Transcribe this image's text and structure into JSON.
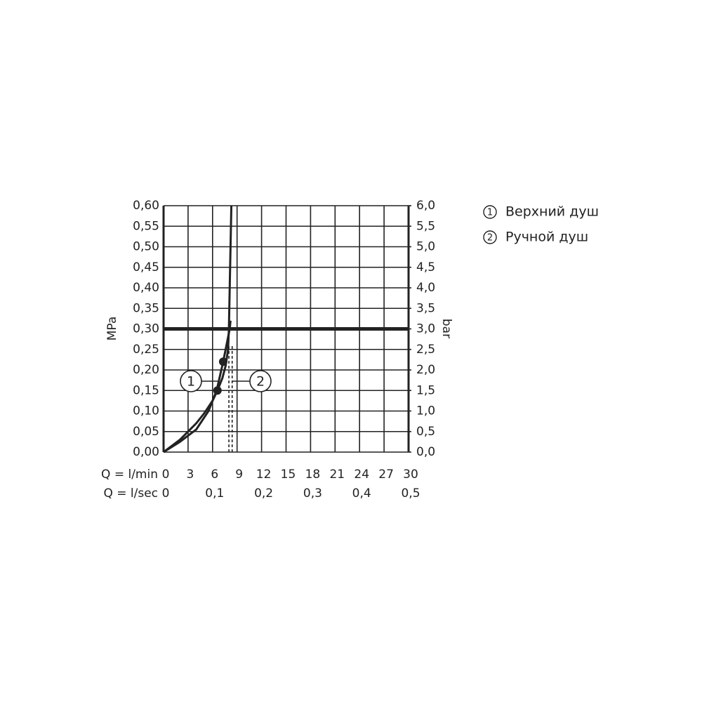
{
  "chart_data": {
    "type": "line",
    "y_label": "MPa",
    "y2_label": "bar",
    "x_label": "Q = l/min",
    "x2_label": "Q = l/sec",
    "xlim": [
      0,
      30
    ],
    "xticks": [
      0,
      3,
      6,
      9,
      12,
      15,
      18,
      21,
      24,
      27,
      30
    ],
    "x2lim": [
      0,
      0.5
    ],
    "x2ticks": [
      {
        "value": 0,
        "label": "0"
      },
      {
        "value": 0.1,
        "label": "0,1"
      },
      {
        "value": 0.2,
        "label": "0,2"
      },
      {
        "value": 0.3,
        "label": "0,3"
      },
      {
        "value": 0.4,
        "label": "0,4"
      },
      {
        "value": 0.5,
        "label": "0,5"
      }
    ],
    "ylim": [
      0,
      0.6
    ],
    "yticks": [
      {
        "value": 0,
        "label": "0,00"
      },
      {
        "value": 0.05,
        "label": "0,05"
      },
      {
        "value": 0.1,
        "label": "0,10"
      },
      {
        "value": 0.15,
        "label": "0,15"
      },
      {
        "value": 0.2,
        "label": "0,20"
      },
      {
        "value": 0.25,
        "label": "0,25"
      },
      {
        "value": 0.3,
        "label": "0,30"
      },
      {
        "value": 0.35,
        "label": "0,35"
      },
      {
        "value": 0.4,
        "label": "0,40"
      },
      {
        "value": 0.45,
        "label": "0,45"
      },
      {
        "value": 0.5,
        "label": "0,50"
      },
      {
        "value": 0.55,
        "label": "0,55"
      },
      {
        "value": 0.6,
        "label": "0,60"
      }
    ],
    "y2lim": [
      0,
      6
    ],
    "y2ticks": [
      {
        "value": 0,
        "label": "0,0"
      },
      {
        "value": 0.5,
        "label": "0,5"
      },
      {
        "value": 1,
        "label": "1,0"
      },
      {
        "value": 1.5,
        "label": "1,5"
      },
      {
        "value": 2,
        "label": "2,0"
      },
      {
        "value": 2.5,
        "label": "2,5"
      },
      {
        "value": 3,
        "label": "3,0"
      },
      {
        "value": 3.5,
        "label": "3,5"
      },
      {
        "value": 4,
        "label": "4,0"
      },
      {
        "value": 4.5,
        "label": "4,5"
      },
      {
        "value": 5,
        "label": "5,0"
      },
      {
        "value": 5.5,
        "label": "5,5"
      },
      {
        "value": 6,
        "label": "6,0"
      }
    ],
    "grid": true,
    "threshold": 0.3,
    "color": "#222222",
    "series": [
      {
        "name": "Верхний душ",
        "label": "1",
        "color": "#222222",
        "x": [
          0,
          2,
          4,
          5,
          6,
          6.6,
          7.2,
          7.6,
          7.9,
          8.0,
          8.05,
          8.1,
          8.2,
          8.3
        ],
        "values": [
          0,
          0.03,
          0.07,
          0.095,
          0.125,
          0.15,
          0.18,
          0.21,
          0.25,
          0.3,
          0.35,
          0.4,
          0.5,
          0.6
        ],
        "marker": {
          "x": 6.6,
          "y": 0.15
        }
      },
      {
        "name": "Ручной душ",
        "label": "2",
        "color": "#222222",
        "x": [
          0,
          2,
          4,
          5.5,
          6.5,
          7.3,
          7.8,
          8.1,
          8.2
        ],
        "values": [
          0,
          0.025,
          0.055,
          0.1,
          0.15,
          0.22,
          0.27,
          0.3,
          0.32
        ],
        "marker": {
          "x": 7.3,
          "y": 0.22
        }
      }
    ],
    "reference_lines": [
      {
        "x": 8.0,
        "y": 0.26
      },
      {
        "x": 8.4,
        "y": 0.26
      }
    ]
  }
}
